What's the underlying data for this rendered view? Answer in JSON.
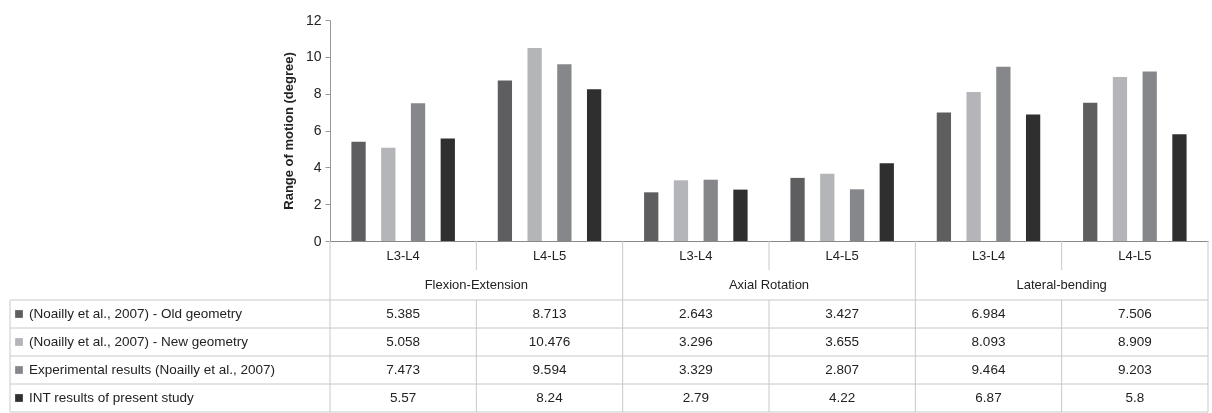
{
  "chart_data": {
    "type": "bar",
    "ylabel": "Range of motion (degree)",
    "categories": [
      "L3-L4",
      "L4-L5",
      "L3-L4",
      "L4-L5",
      "L3-L4",
      "L4-L5"
    ],
    "annotations": [
      "Flexion-Extension",
      "Axial Rotation",
      "Lateral-bending"
    ],
    "series": [
      {
        "name": "(Noailly et al., 2007) - Old geometry",
        "color": "#5e5e60",
        "values": [
          5.385,
          8.713,
          2.643,
          3.427,
          6.984,
          7.506
        ]
      },
      {
        "name": "(Noailly et al., 2007) - New geometry",
        "color": "#b4b5b8",
        "values": [
          5.058,
          10.476,
          3.296,
          3.655,
          8.093,
          8.909
        ]
      },
      {
        "name": "Experimental  results (Noailly et al., 2007)",
        "color": "#86878a",
        "values": [
          7.473,
          9.594,
          3.329,
          2.807,
          9.464,
          9.203
        ]
      },
      {
        "name": "INT results of present study",
        "color": "#2f2f2f",
        "values": [
          5.57,
          8.24,
          2.79,
          4.22,
          6.87,
          5.8
        ]
      }
    ],
    "ylim": [
      0,
      12
    ],
    "yticks": [
      0,
      2,
      4,
      6,
      8,
      10,
      12
    ],
    "grid": false,
    "legend": "bottom",
    "data_labels": true
  }
}
